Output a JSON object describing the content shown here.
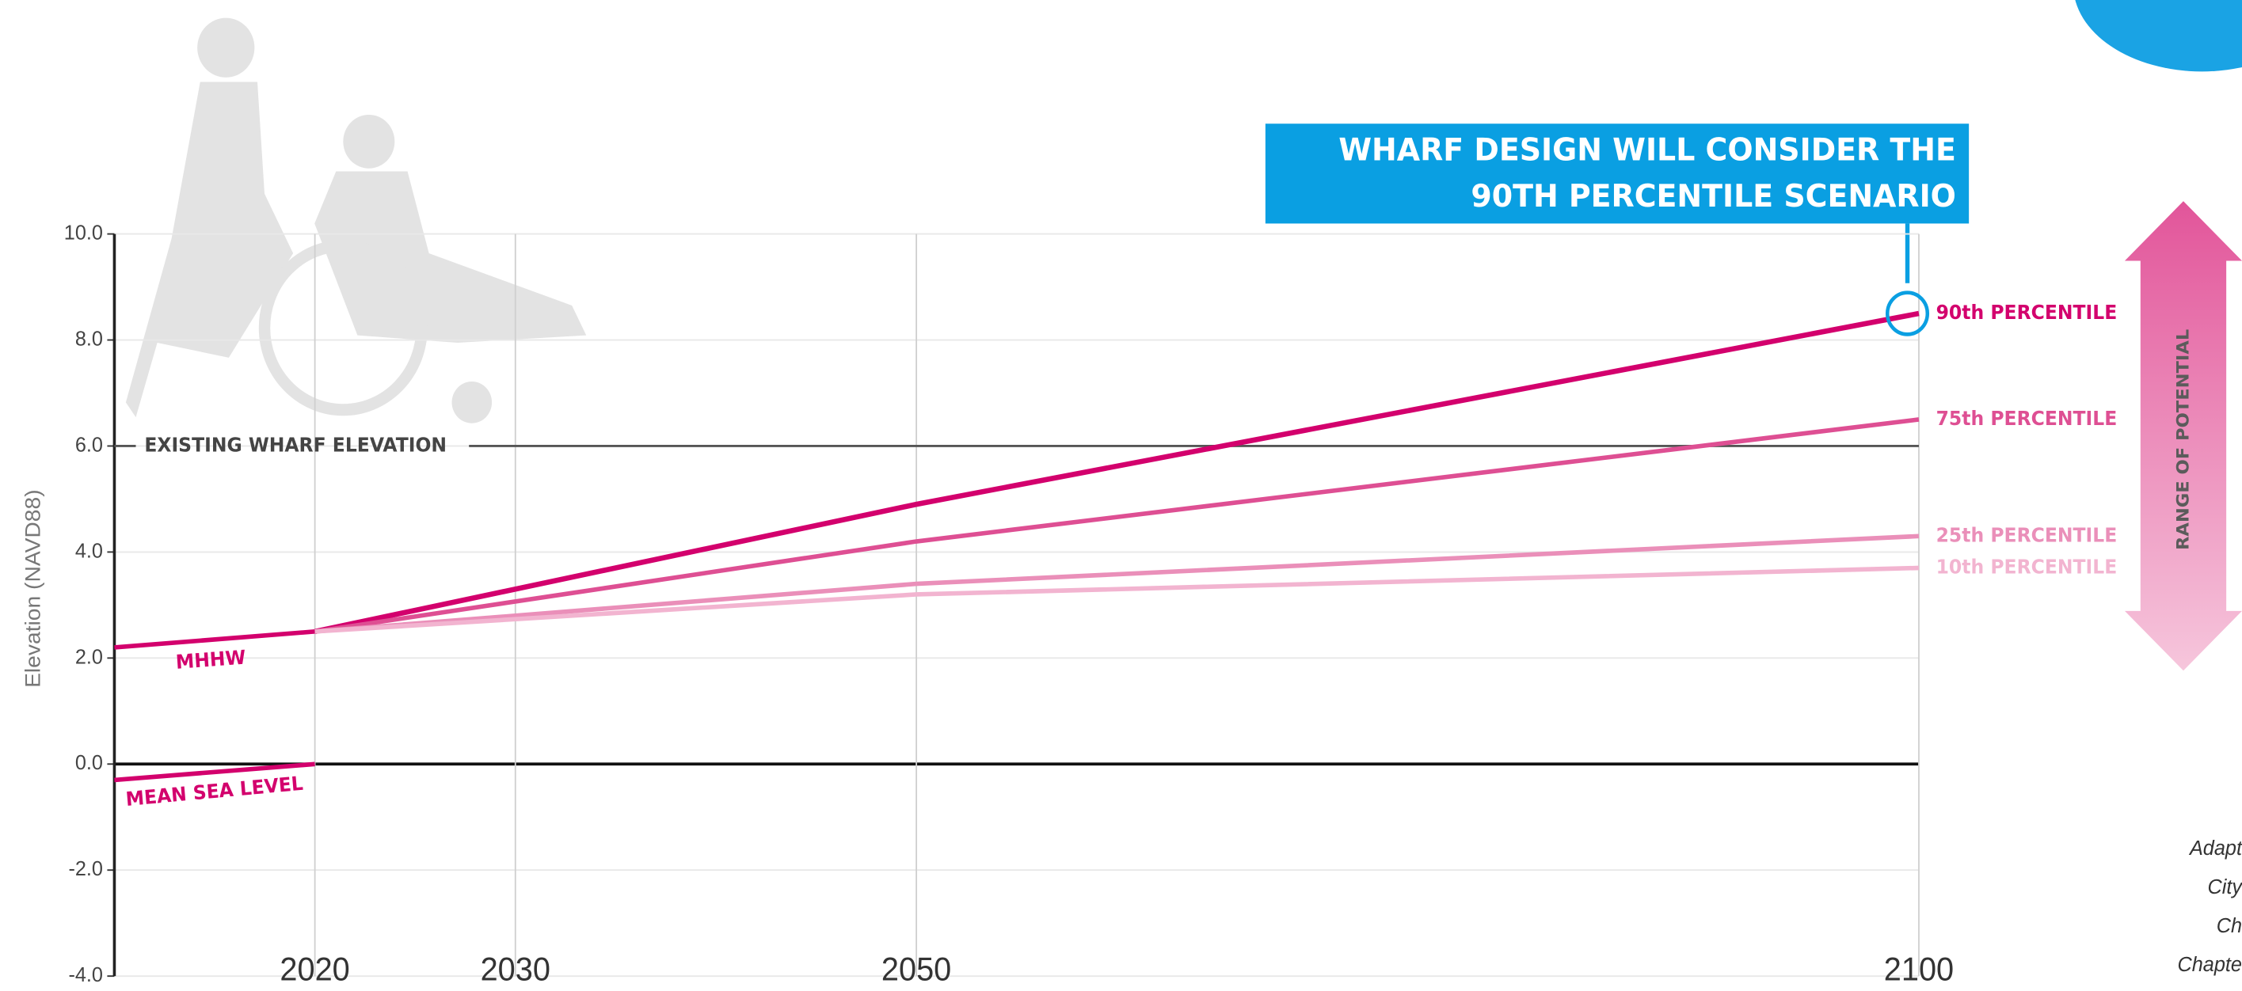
{
  "chart_data": {
    "type": "line",
    "y_label": "Elevation (NAVD88)",
    "x": [
      2010,
      2020,
      2050,
      2100
    ],
    "xlim": [
      2010,
      2100
    ],
    "xticks": [
      2020,
      2030,
      2050,
      2100
    ],
    "ylim": [
      -4,
      10
    ],
    "yticks": [
      {
        "value": -4,
        "label": "-4.0"
      },
      {
        "value": -2,
        "label": "-2.0"
      },
      {
        "value": 0,
        "label": "0.0"
      },
      {
        "value": 2,
        "label": "2.0"
      },
      {
        "value": 4,
        "label": "4.0"
      },
      {
        "value": 6,
        "label": "6.0"
      },
      {
        "value": 8,
        "label": "8.0"
      },
      {
        "value": 10,
        "label": "10.0"
      }
    ],
    "grid": true,
    "series": [
      {
        "name": "MHHW",
        "color": "#d3006d",
        "values": [
          2.2,
          2.5,
          null,
          null
        ]
      },
      {
        "name": "MEAN SEA LEVEL",
        "color": "#d3006d",
        "values": [
          -0.3,
          0.0,
          null,
          null
        ]
      },
      {
        "name": "90th PERCENTILE",
        "color": "#d3006d",
        "values": [
          null,
          2.5,
          4.9,
          8.5
        ]
      },
      {
        "name": "75th PERCENTILE",
        "color": "#de4f93",
        "values": [
          null,
          2.5,
          4.2,
          6.5
        ]
      },
      {
        "name": "25th PERCENTILE",
        "color": "#ea8fb9",
        "values": [
          null,
          2.5,
          3.4,
          4.3
        ]
      },
      {
        "name": "10th PERCENTILE",
        "color": "#f2b4d0",
        "values": [
          null,
          2.5,
          3.2,
          3.7
        ]
      }
    ],
    "reference_lines": [
      {
        "label": "EXISTING WHARF ELEVATION",
        "value": 6
      }
    ],
    "callout": [
      "WHARF DESIGN WILL CONSIDER THE",
      "90TH PERCENTILE SCENARIO"
    ],
    "range_label": "RANGE OF POTENTIAL",
    "side_note": [
      "Adapt",
      "City",
      "Ch",
      "Chapte"
    ]
  }
}
